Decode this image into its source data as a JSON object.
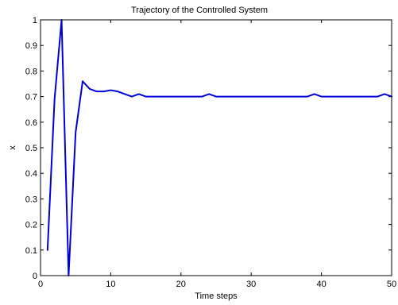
{
  "chart_data": {
    "type": "line",
    "title": "Trajectory of the Controlled System",
    "xlabel": "Time steps",
    "ylabel": "x",
    "xlim": [
      0,
      50
    ],
    "ylim": [
      0,
      1
    ],
    "xticks": [
      0,
      10,
      20,
      30,
      40,
      50
    ],
    "yticks": [
      0,
      0.1,
      0.2,
      0.3,
      0.4,
      0.5,
      0.6,
      0.7,
      0.8,
      0.9,
      1
    ],
    "grid": false,
    "legend": "none",
    "series": [
      {
        "color": "#0000dd",
        "x": [
          1,
          2,
          3,
          4,
          5,
          6,
          7,
          8,
          9,
          10,
          11,
          12,
          13,
          14,
          15,
          16,
          17,
          18,
          19,
          20,
          21,
          22,
          23,
          24,
          25,
          26,
          27,
          28,
          29,
          30,
          31,
          32,
          33,
          34,
          35,
          36,
          37,
          38,
          39,
          40,
          41,
          42,
          43,
          44,
          45,
          46,
          47,
          48,
          49,
          50
        ],
        "y": [
          0.1,
          0.69,
          1.0,
          0.0,
          0.56,
          0.76,
          0.73,
          0.72,
          0.72,
          0.725,
          0.72,
          0.71,
          0.7,
          0.71,
          0.7,
          0.7,
          0.7,
          0.7,
          0.7,
          0.7,
          0.7,
          0.7,
          0.7,
          0.71,
          0.7,
          0.7,
          0.7,
          0.7,
          0.7,
          0.7,
          0.7,
          0.7,
          0.7,
          0.7,
          0.7,
          0.7,
          0.7,
          0.7,
          0.71,
          0.7,
          0.7,
          0.7,
          0.7,
          0.7,
          0.7,
          0.7,
          0.7,
          0.7,
          0.71,
          0.7
        ]
      }
    ]
  }
}
